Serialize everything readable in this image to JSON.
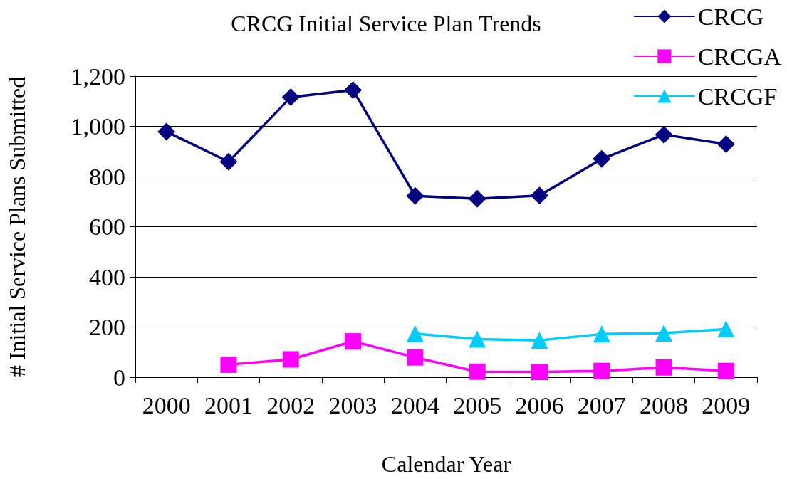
{
  "chart_data": {
    "type": "line",
    "title": "CRCG Initial Service Plan Trends",
    "xlabel": "Calendar Year",
    "ylabel": "# Initial Service Plans Submitted",
    "categories": [
      "2000",
      "2001",
      "2002",
      "2003",
      "2004",
      "2005",
      "2006",
      "2007",
      "2008",
      "2009"
    ],
    "series": [
      {
        "name": "CRCG",
        "color": "#000080",
        "marker": "diamond",
        "values": [
          979,
          859,
          1116,
          1145,
          723,
          711,
          724,
          870,
          967,
          929
        ]
      },
      {
        "name": "CRCGA",
        "color": "#ff00ff",
        "marker": "square",
        "values": [
          null,
          50,
          71,
          143,
          79,
          22,
          21,
          25,
          39,
          25
        ]
      },
      {
        "name": "CRCGF",
        "color": "#00ccff",
        "marker": "triangle",
        "values": [
          null,
          null,
          null,
          null,
          174,
          152,
          147,
          172,
          176,
          192
        ]
      }
    ],
    "ylim": [
      0,
      1200
    ],
    "yticks": [
      0,
      200,
      400,
      600,
      800,
      {
        "value": 1000,
        "label": "1,000"
      },
      {
        "value": 1200,
        "label": "1,200"
      }
    ],
    "grid": "y",
    "legend": "top right",
    "line_style": "solid"
  }
}
